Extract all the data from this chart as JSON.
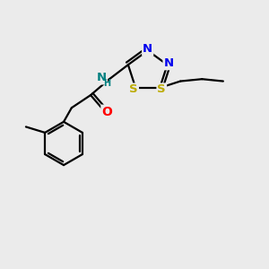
{
  "background_color": "#ebebeb",
  "atom_colors": {
    "C": "#000000",
    "N": "#0000ee",
    "S": "#bbaa00",
    "O": "#ff0000",
    "H": "#008080"
  },
  "figsize": [
    3.0,
    3.0
  ],
  "dpi": 100
}
